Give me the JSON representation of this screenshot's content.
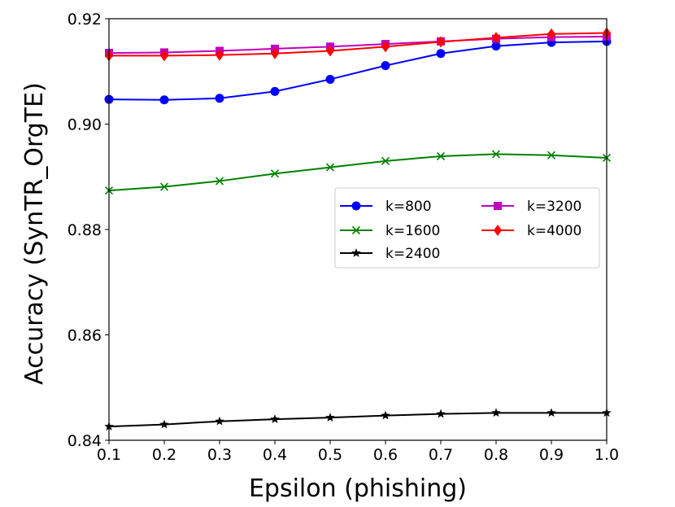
{
  "chart_data": {
    "type": "line",
    "title": "",
    "xlabel": "Epsilon (phishing)",
    "ylabel": "Accuracy  (SynTR_OrgTE)",
    "xlim": [
      0.1,
      1.0
    ],
    "ylim": [
      0.84,
      0.92
    ],
    "x": [
      0.1,
      0.2,
      0.3,
      0.4,
      0.5,
      0.6,
      0.7,
      0.8,
      0.9,
      1.0
    ],
    "x_tick_labels": [
      "0.1",
      "0.2",
      "0.3",
      "0.4",
      "0.5",
      "0.6",
      "0.7",
      "0.8",
      "0.9",
      "1.0"
    ],
    "y_ticks": [
      0.84,
      0.86,
      0.88,
      0.9,
      0.92
    ],
    "y_tick_labels": [
      "0.84",
      "0.86",
      "0.88",
      "0.90",
      "0.92"
    ],
    "legend_position": "center-right",
    "series": [
      {
        "name": "k=800",
        "color": "#0000ff",
        "marker": "circle",
        "values": [
          0.9047,
          0.9046,
          0.9049,
          0.9062,
          0.9085,
          0.9111,
          0.9134,
          0.9148,
          0.9155,
          0.9157
        ]
      },
      {
        "name": "k=1600",
        "color": "#008000",
        "marker": "x",
        "values": [
          0.8874,
          0.8881,
          0.8892,
          0.8906,
          0.8918,
          0.893,
          0.8939,
          0.8943,
          0.8941,
          0.8936
        ]
      },
      {
        "name": "k=2400",
        "color": "#000000",
        "marker": "star",
        "values": [
          0.8426,
          0.843,
          0.8436,
          0.844,
          0.8443,
          0.8447,
          0.845,
          0.8452,
          0.8452,
          0.8452
        ]
      },
      {
        "name": "k=3200",
        "color": "#bf00bf",
        "marker": "square",
        "values": [
          0.9135,
          0.9136,
          0.9139,
          0.9143,
          0.9147,
          0.9152,
          0.9157,
          0.9162,
          0.9165,
          0.9166
        ]
      },
      {
        "name": "k=4000",
        "color": "#ff0000",
        "marker": "diamond",
        "values": [
          0.913,
          0.913,
          0.9131,
          0.9134,
          0.9139,
          0.9147,
          0.9156,
          0.9164,
          0.9171,
          0.9173
        ]
      }
    ]
  }
}
